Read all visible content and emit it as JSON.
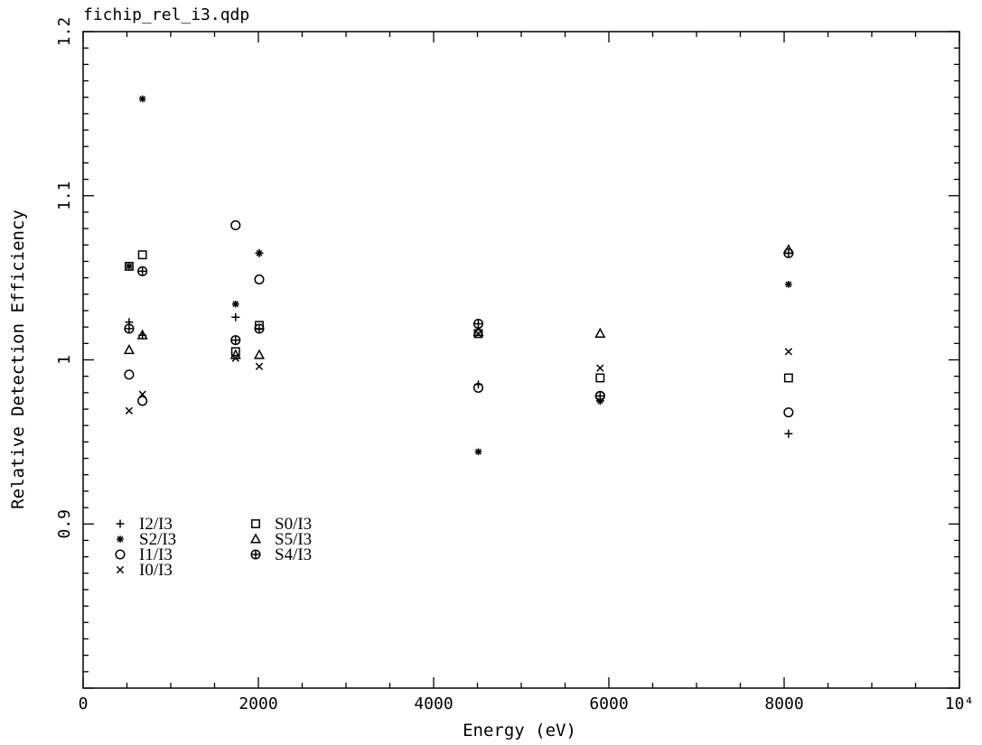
{
  "chart_data": {
    "type": "scatter",
    "title": "fichip_rel_i3.qdp",
    "xlabel": "Energy (eV)",
    "ylabel": "Relative Detection Efficiency",
    "xlim": [
      0,
      10000
    ],
    "ylim": [
      0.8,
      1.2
    ],
    "x_tick_labels": [
      "0",
      "2000",
      "4000",
      "6000",
      "8000",
      "10⁴"
    ],
    "y_tick_labels": [
      "0.9",
      "1",
      "1.1",
      "1.2"
    ],
    "grid": false,
    "legend_position": "bottom-left",
    "series": [
      {
        "name": "I2/I3",
        "marker": "plus",
        "points": [
          [
            525,
            1.023
          ],
          [
            677,
            1.015
          ],
          [
            1740,
            1.026
          ],
          [
            2010,
            1.065
          ],
          [
            4510,
            0.985
          ],
          [
            5900,
            0.975
          ],
          [
            8050,
            0.955
          ]
        ]
      },
      {
        "name": "S2/I3",
        "marker": "asterisk",
        "points": [
          [
            525,
            1.057
          ],
          [
            677,
            1.159
          ],
          [
            1740,
            1.034
          ],
          [
            2010,
            1.065
          ],
          [
            4510,
            0.944
          ],
          [
            5900,
            0.975
          ],
          [
            8050,
            1.046
          ]
        ]
      },
      {
        "name": "I1/I3",
        "marker": "circle",
        "points": [
          [
            525,
            0.991
          ],
          [
            677,
            0.975
          ],
          [
            1740,
            1.082
          ],
          [
            2010,
            1.049
          ],
          [
            4510,
            0.983
          ],
          [
            5900,
            0.978
          ],
          [
            8050,
            0.968
          ]
        ]
      },
      {
        "name": "I0/I3",
        "marker": "cross",
        "points": [
          [
            525,
            0.969
          ],
          [
            677,
            0.979
          ],
          [
            1740,
            1.001
          ],
          [
            2010,
            0.996
          ],
          [
            4510,
            1.016
          ],
          [
            5900,
            0.995
          ],
          [
            8050,
            1.005
          ]
        ]
      },
      {
        "name": "S0/I3",
        "marker": "square",
        "points": [
          [
            525,
            1.057
          ],
          [
            677,
            1.064
          ],
          [
            1740,
            1.005
          ],
          [
            2010,
            1.021
          ],
          [
            4510,
            1.016
          ],
          [
            5900,
            0.989
          ],
          [
            8050,
            0.989
          ]
        ]
      },
      {
        "name": "S5/I3",
        "marker": "triangle",
        "points": [
          [
            525,
            1.006
          ],
          [
            677,
            1.015
          ],
          [
            1740,
            1.003
          ],
          [
            2010,
            1.003
          ],
          [
            4510,
            1.017
          ],
          [
            5900,
            1.016
          ],
          [
            8050,
            1.067
          ]
        ]
      },
      {
        "name": "S4/I3",
        "marker": "circle-plus",
        "points": [
          [
            525,
            1.019
          ],
          [
            677,
            1.054
          ],
          [
            1740,
            1.012
          ],
          [
            2010,
            1.019
          ],
          [
            4510,
            1.022
          ],
          [
            5900,
            0.978
          ],
          [
            8050,
            1.065
          ]
        ]
      }
    ]
  }
}
